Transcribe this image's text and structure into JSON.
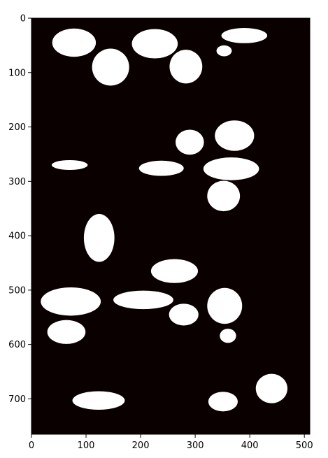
{
  "chart_data": {
    "type": "heatmap",
    "title": "",
    "xlabel": "",
    "ylabel": "",
    "xlim": [
      0,
      510
    ],
    "ylim": [
      765,
      0
    ],
    "x_ticks": [
      "0",
      "100",
      "200",
      "300",
      "400",
      "500"
    ],
    "y_ticks": [
      "0",
      "100",
      "200",
      "300",
      "400",
      "500",
      "600",
      "700"
    ],
    "grid": false,
    "colormap": "hot",
    "background_color": "#0b0000",
    "mask_color": "#ffffff",
    "regions": [
      {
        "shape": "ellipse",
        "cx": 78,
        "cy": 45,
        "rx": 40,
        "ry": 26
      },
      {
        "shape": "ellipse",
        "cx": 145,
        "cy": 90,
        "rx": 34,
        "ry": 34
      },
      {
        "shape": "ellipse",
        "cx": 226,
        "cy": 47,
        "rx": 42,
        "ry": 27
      },
      {
        "shape": "ellipse",
        "cx": 283,
        "cy": 89,
        "rx": 30,
        "ry": 31
      },
      {
        "shape": "ellipse",
        "cx": 390,
        "cy": 32,
        "rx": 42,
        "ry": 14
      },
      {
        "shape": "ellipse",
        "cx": 353,
        "cy": 60,
        "rx": 14,
        "ry": 10
      },
      {
        "shape": "ellipse",
        "cx": 290,
        "cy": 228,
        "rx": 26,
        "ry": 23
      },
      {
        "shape": "ellipse",
        "cx": 372,
        "cy": 216,
        "rx": 36,
        "ry": 28
      },
      {
        "shape": "ellipse",
        "cx": 70,
        "cy": 270,
        "rx": 33,
        "ry": 9
      },
      {
        "shape": "ellipse",
        "cx": 238,
        "cy": 276,
        "rx": 41,
        "ry": 14
      },
      {
        "shape": "ellipse",
        "cx": 366,
        "cy": 277,
        "rx": 51,
        "ry": 21
      },
      {
        "shape": "ellipse",
        "cx": 352,
        "cy": 327,
        "rx": 30,
        "ry": 28
      },
      {
        "shape": "ellipse",
        "cx": 124,
        "cy": 404,
        "rx": 28,
        "ry": 44
      },
      {
        "shape": "ellipse",
        "cx": 262,
        "cy": 465,
        "rx": 43,
        "ry": 22
      },
      {
        "shape": "ellipse",
        "cx": 72,
        "cy": 521,
        "rx": 55,
        "ry": 26
      },
      {
        "shape": "ellipse",
        "cx": 205,
        "cy": 518,
        "rx": 55,
        "ry": 17
      },
      {
        "shape": "ellipse",
        "cx": 279,
        "cy": 545,
        "rx": 27,
        "ry": 20
      },
      {
        "shape": "ellipse",
        "cx": 354,
        "cy": 529,
        "rx": 32,
        "ry": 33
      },
      {
        "shape": "ellipse",
        "cx": 64,
        "cy": 577,
        "rx": 35,
        "ry": 22
      },
      {
        "shape": "ellipse",
        "cx": 360,
        "cy": 584,
        "rx": 15,
        "ry": 13
      },
      {
        "shape": "ellipse",
        "cx": 440,
        "cy": 681,
        "rx": 29,
        "ry": 27
      },
      {
        "shape": "ellipse",
        "cx": 123,
        "cy": 703,
        "rx": 48,
        "ry": 17
      },
      {
        "shape": "ellipse",
        "cx": 351,
        "cy": 705,
        "rx": 27,
        "ry": 18
      }
    ]
  }
}
